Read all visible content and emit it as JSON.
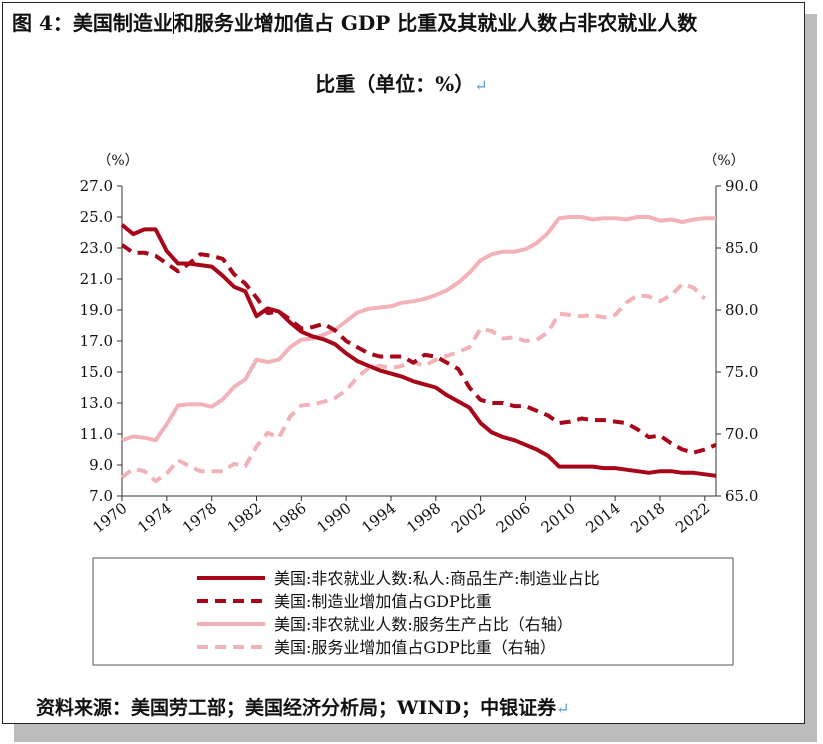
{
  "title": {
    "line1_a": "图 4：美国制造业",
    "line1_b": "和服务业增加值占 GDP 比重及其就业人数占非农就业人数",
    "line2": "比重（单位：%）",
    "return_mark": "↵"
  },
  "source": "资料来源：美国劳工部；美国经济分析局；WIND；中银证券",
  "colors": {
    "dark_red": "#a8071a",
    "light_pink": "#f2b3b8"
  },
  "chart_data": {
    "type": "line",
    "left_unit": "（%）",
    "right_unit": "（%）",
    "x_ticks": [
      "1970",
      "1974",
      "1978",
      "1982",
      "1986",
      "1990",
      "1994",
      "1998",
      "2002",
      "2006",
      "2010",
      "2014",
      "2018",
      "2022"
    ],
    "xlim": [
      1970,
      2023
    ],
    "ylim_left": [
      7.0,
      27.0
    ],
    "ylim_right": [
      65.0,
      90.0
    ],
    "yticks_left": [
      "27.0",
      "25.0",
      "23.0",
      "21.0",
      "19.0",
      "17.0",
      "15.0",
      "13.0",
      "11.0",
      "9.0",
      "7.0"
    ],
    "yticks_right": [
      "90.0",
      "85.0",
      "80.0",
      "75.0",
      "70.0",
      "65.0"
    ],
    "x": [
      1970,
      1971,
      1972,
      1973,
      1974,
      1975,
      1976,
      1977,
      1978,
      1979,
      1980,
      1981,
      1982,
      1983,
      1984,
      1985,
      1986,
      1987,
      1988,
      1989,
      1990,
      1991,
      1992,
      1993,
      1994,
      1995,
      1996,
      1997,
      1998,
      1999,
      2000,
      2001,
      2002,
      2003,
      2004,
      2005,
      2006,
      2007,
      2008,
      2009,
      2010,
      2011,
      2012,
      2013,
      2014,
      2015,
      2016,
      2017,
      2018,
      2019,
      2020,
      2021,
      2022,
      2023
    ],
    "series": [
      {
        "name": "美国:非农就业人数:私人:商品生产:制造业占比",
        "axis": "left",
        "style": "solid",
        "color": "#a8071a",
        "values": [
          24.5,
          23.9,
          24.2,
          24.2,
          22.8,
          22.0,
          22.0,
          21.9,
          21.8,
          21.2,
          20.5,
          20.2,
          18.6,
          19.1,
          18.9,
          18.2,
          17.6,
          17.3,
          17.1,
          16.8,
          16.2,
          15.7,
          15.4,
          15.1,
          14.9,
          14.7,
          14.4,
          14.2,
          14.0,
          13.5,
          13.1,
          12.7,
          11.7,
          11.1,
          10.8,
          10.6,
          10.3,
          10.0,
          9.6,
          8.9,
          8.9,
          8.9,
          8.9,
          8.8,
          8.8,
          8.7,
          8.6,
          8.5,
          8.6,
          8.6,
          8.5,
          8.5,
          8.4,
          8.3
        ]
      },
      {
        "name": "美国:制造业增加值占GDP比重",
        "axis": "left",
        "style": "dashed",
        "color": "#a8071a",
        "values": [
          23.2,
          22.7,
          22.7,
          22.5,
          22.0,
          21.5,
          22.0,
          22.6,
          22.5,
          22.3,
          21.3,
          20.7,
          19.8,
          18.8,
          18.9,
          18.4,
          17.8,
          17.9,
          18.1,
          17.7,
          17.0,
          16.6,
          16.2,
          16.0,
          16.0,
          16.0,
          15.6,
          16.1,
          16.0,
          15.6,
          15.2,
          14.0,
          13.2,
          13.0,
          13.0,
          12.8,
          12.8,
          12.5,
          12.2,
          11.7,
          11.8,
          12.0,
          11.9,
          11.9,
          11.8,
          11.7,
          11.3,
          10.8,
          10.9,
          10.4,
          10.0,
          9.8,
          10.0,
          10.3
        ]
      },
      {
        "name": "美国:非农就业人数:服务生产占比（右轴）",
        "axis": "right",
        "style": "solid",
        "color": "#f2b3b8",
        "values": [
          69.5,
          69.8,
          69.7,
          69.5,
          70.8,
          72.3,
          72.4,
          72.4,
          72.2,
          72.8,
          73.8,
          74.4,
          76.0,
          75.8,
          76.0,
          77.0,
          77.6,
          77.7,
          78.0,
          78.4,
          79.1,
          79.8,
          80.1,
          80.2,
          80.3,
          80.6,
          80.7,
          80.9,
          81.2,
          81.6,
          82.2,
          83.0,
          84.0,
          84.5,
          84.7,
          84.7,
          84.9,
          85.4,
          86.2,
          87.4,
          87.5,
          87.5,
          87.3,
          87.4,
          87.4,
          87.3,
          87.5,
          87.5,
          87.2,
          87.3,
          87.1,
          87.3,
          87.4,
          87.4
        ]
      },
      {
        "name": "美国:服务业增加值占GDP比重（右轴）",
        "axis": "right",
        "style": "dashed",
        "color": "#f2b3b8",
        "values": [
          66.5,
          67.2,
          67.0,
          66.2,
          66.8,
          67.9,
          67.4,
          67.0,
          67.0,
          67.0,
          67.6,
          67.4,
          69.0,
          70.1,
          69.7,
          71.4,
          72.3,
          72.4,
          72.6,
          72.9,
          73.5,
          74.6,
          75.3,
          75.5,
          75.3,
          75.5,
          75.8,
          75.5,
          76.0,
          76.3,
          76.6,
          77.0,
          78.5,
          78.3,
          77.7,
          77.8,
          77.5,
          77.6,
          78.2,
          79.7,
          79.6,
          79.5,
          79.6,
          79.4,
          79.6,
          80.6,
          81.2,
          81.1,
          80.7,
          81.2,
          82.1,
          81.8,
          80.9,
          null
        ]
      }
    ]
  }
}
